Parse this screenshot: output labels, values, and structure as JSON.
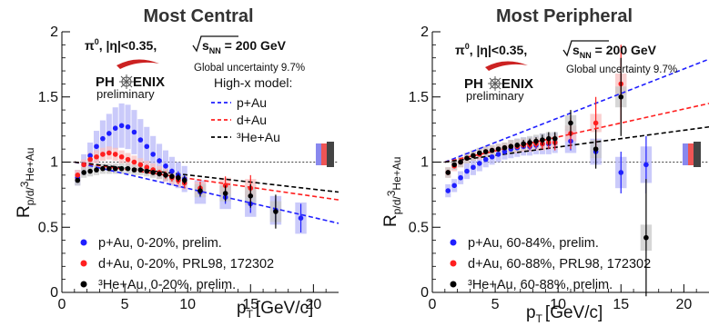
{
  "panels": [
    {
      "title": "Most Central",
      "condition": "π⁰, |η|<0.35, √s_NN = 200 GeV",
      "global_uncertainty": "Global uncertainty 9.7%",
      "logo_word": "PHENIX",
      "logo_sub": "preliminary",
      "model_title": "High-x model:",
      "model_entries": [
        "p+Au",
        "d+Au",
        "³He+Au"
      ],
      "legend": [
        "p+Au, 0-20%, prelim.",
        "d+Au, 0-20%, PRL98, 172302",
        "³He+Au, 0-20%, prelim."
      ]
    },
    {
      "title": "Most Peripheral",
      "condition": "π⁰, |η|<0.35, √s_NN = 200 GeV",
      "global_uncertainty": "Global uncertainty 9.7%",
      "logo_word": "PHENIX",
      "logo_sub": "preliminary",
      "model_title": "",
      "model_entries": [],
      "legend": [
        "p+Au, 60-84%, prelim.",
        "d+Au, 60-88%, PRL98, 172302",
        "³He+Au, 60-88%, prelim."
      ]
    }
  ],
  "colors": {
    "pAu": "#1f1fff",
    "dAu": "#ff1f1f",
    "HeAu": "#000000",
    "pBand": "#b8b8f8",
    "dBand": "#f8c0c0",
    "hBand": "#c8c8c8",
    "title": "#333333"
  },
  "chart_data": [
    {
      "type": "scatter",
      "title": "Most Central",
      "xlabel": "p_T [GeV/c]",
      "ylabel": "R_p/d/3He+Au",
      "xlim": [
        0,
        22
      ],
      "ylim": [
        0,
        2
      ],
      "xticks": [
        0,
        5,
        10,
        15,
        20
      ],
      "yticks": [
        0,
        0.5,
        1,
        1.5,
        2
      ],
      "reference_line": 1,
      "series": [
        {
          "name": "p+Au, 0-20%, prelim.",
          "key": "pAu",
          "x": [
            1.25,
            1.75,
            2.25,
            2.75,
            3.25,
            3.75,
            4.25,
            4.75,
            5.25,
            5.75,
            6.25,
            6.75,
            7.25,
            7.75,
            8.25,
            8.75,
            9.25,
            9.75,
            11,
            13,
            15,
            17,
            19
          ],
          "y": [
            0.88,
            0.98,
            1.05,
            1.12,
            1.18,
            1.22,
            1.26,
            1.28,
            1.27,
            1.23,
            1.17,
            1.12,
            1.06,
            1.01,
            0.97,
            0.93,
            0.9,
            0.87,
            0.77,
            0.73,
            0.68,
            0.63,
            0.57
          ],
          "band": [
            0.06,
            0.08,
            0.1,
            0.12,
            0.14,
            0.15,
            0.16,
            0.17,
            0.17,
            0.17,
            0.16,
            0.15,
            0.14,
            0.13,
            0.12,
            0.11,
            0.1,
            0.1,
            0.09,
            0.09,
            0.1,
            0.11,
            0.12
          ],
          "err": [
            0.01,
            0.01,
            0.01,
            0.01,
            0.01,
            0.01,
            0.01,
            0.01,
            0.01,
            0.01,
            0.01,
            0.015,
            0.015,
            0.02,
            0.02,
            0.02,
            0.03,
            0.03,
            0.04,
            0.05,
            0.07,
            0.09,
            0.11
          ]
        },
        {
          "name": "d+Au, 0-20%, PRL98, 172302",
          "key": "dAu",
          "x": [
            1.25,
            1.75,
            2.25,
            2.75,
            3.25,
            3.75,
            4.25,
            4.75,
            5.25,
            5.75,
            6.25,
            6.75,
            7.25,
            7.75,
            8.25,
            8.75,
            9.25,
            9.75,
            11,
            13,
            15
          ],
          "y": [
            0.9,
            0.98,
            1.02,
            1.04,
            1.06,
            1.07,
            1.06,
            1.04,
            1.02,
            1.0,
            0.98,
            0.96,
            0.94,
            0.92,
            0.9,
            0.88,
            0.86,
            0.84,
            0.8,
            0.82,
            0.8
          ],
          "band": [
            0.04,
            0.04,
            0.05,
            0.05,
            0.05,
            0.05,
            0.05,
            0.05,
            0.05,
            0.05,
            0.05,
            0.05,
            0.05,
            0.05,
            0.05,
            0.05,
            0.05,
            0.05,
            0.05,
            0.06,
            0.07
          ],
          "err": [
            0.01,
            0.01,
            0.01,
            0.01,
            0.01,
            0.01,
            0.01,
            0.01,
            0.01,
            0.01,
            0.01,
            0.02,
            0.02,
            0.02,
            0.03,
            0.03,
            0.03,
            0.04,
            0.05,
            0.07,
            0.1
          ]
        },
        {
          "name": "³He+Au, 0-20%, prelim.",
          "key": "HeAu",
          "x": [
            1.25,
            1.75,
            2.25,
            2.75,
            3.25,
            3.75,
            4.25,
            4.75,
            5.25,
            5.75,
            6.25,
            6.75,
            7.25,
            7.75,
            8.25,
            8.75,
            9.25,
            9.75,
            11,
            13,
            15,
            17
          ],
          "y": [
            0.86,
            0.92,
            0.93,
            0.94,
            0.95,
            0.95,
            0.95,
            0.95,
            0.95,
            0.94,
            0.94,
            0.93,
            0.92,
            0.91,
            0.9,
            0.89,
            0.88,
            0.86,
            0.78,
            0.76,
            0.74,
            0.62
          ],
          "band": [
            0.04,
            0.04,
            0.04,
            0.04,
            0.04,
            0.04,
            0.04,
            0.04,
            0.04,
            0.04,
            0.04,
            0.04,
            0.04,
            0.04,
            0.04,
            0.04,
            0.04,
            0.04,
            0.05,
            0.06,
            0.07,
            0.08
          ],
          "err": [
            0.01,
            0.01,
            0.01,
            0.01,
            0.01,
            0.01,
            0.01,
            0.01,
            0.01,
            0.01,
            0.01,
            0.015,
            0.015,
            0.02,
            0.02,
            0.02,
            0.03,
            0.03,
            0.04,
            0.06,
            0.09,
            0.13
          ]
        }
      ],
      "model_lines": [
        {
          "name": "p+Au",
          "key": "pAu",
          "x": [
            1,
            22
          ],
          "y": [
            1.0,
            0.53
          ]
        },
        {
          "name": "d+Au",
          "key": "dAu",
          "x": [
            1,
            22
          ],
          "y": [
            1.0,
            0.71
          ]
        },
        {
          "name": "³He+Au",
          "key": "HeAu",
          "x": [
            1,
            22
          ],
          "y": [
            1.0,
            0.77
          ]
        }
      ]
    },
    {
      "type": "scatter",
      "title": "Most Peripheral",
      "xlabel": "p_T [GeV/c]",
      "ylabel": "R_p/d/3He+Au",
      "xlim": [
        0,
        22
      ],
      "ylim": [
        0,
        2
      ],
      "xticks": [
        0,
        5,
        10,
        15,
        20
      ],
      "yticks": [
        0,
        0.5,
        1,
        1.5,
        2
      ],
      "reference_line": 1,
      "series": [
        {
          "name": "p+Au, 60-84%, prelim.",
          "key": "pAu",
          "x": [
            1.25,
            1.75,
            2.25,
            2.75,
            3.25,
            3.75,
            4.25,
            4.75,
            5.25,
            5.75,
            6.25,
            6.75,
            7.25,
            7.75,
            8.25,
            8.75,
            9.25,
            9.75,
            11,
            13,
            15,
            17
          ],
          "y": [
            0.78,
            0.82,
            0.88,
            0.93,
            0.96,
            0.99,
            1.02,
            1.04,
            1.06,
            1.08,
            1.1,
            1.11,
            1.12,
            1.12,
            1.13,
            1.14,
            1.14,
            1.15,
            1.16,
            1.08,
            0.92,
            0.98
          ],
          "band": [
            0.05,
            0.05,
            0.05,
            0.06,
            0.06,
            0.06,
            0.06,
            0.06,
            0.06,
            0.06,
            0.07,
            0.07,
            0.07,
            0.07,
            0.07,
            0.08,
            0.08,
            0.08,
            0.09,
            0.1,
            0.12,
            0.14
          ],
          "err": [
            0.01,
            0.01,
            0.01,
            0.01,
            0.01,
            0.01,
            0.01,
            0.01,
            0.015,
            0.015,
            0.02,
            0.02,
            0.02,
            0.03,
            0.03,
            0.03,
            0.04,
            0.05,
            0.07,
            0.1,
            0.16,
            0.22
          ]
        },
        {
          "name": "d+Au, 60-88%, PRL98, 172302",
          "key": "dAu",
          "x": [
            1.25,
            1.75,
            2.25,
            2.75,
            3.25,
            3.75,
            4.25,
            4.75,
            5.25,
            5.75,
            6.25,
            6.75,
            7.25,
            7.75,
            8.25,
            8.75,
            9.25,
            9.75,
            11,
            13,
            15
          ],
          "y": [
            0.92,
            0.97,
            1.0,
            1.03,
            1.05,
            1.06,
            1.08,
            1.09,
            1.1,
            1.11,
            1.12,
            1.12,
            1.13,
            1.13,
            1.14,
            1.14,
            1.15,
            1.15,
            1.22,
            1.3,
            1.6
          ],
          "band": [
            0.04,
            0.04,
            0.04,
            0.04,
            0.04,
            0.04,
            0.04,
            0.04,
            0.04,
            0.04,
            0.05,
            0.05,
            0.05,
            0.05,
            0.05,
            0.05,
            0.05,
            0.05,
            0.06,
            0.07,
            0.08
          ],
          "err": [
            0.01,
            0.01,
            0.01,
            0.01,
            0.01,
            0.01,
            0.01,
            0.01,
            0.01,
            0.015,
            0.02,
            0.02,
            0.02,
            0.03,
            0.03,
            0.04,
            0.05,
            0.06,
            0.12,
            0.2,
            0.3
          ]
        },
        {
          "name": "³He+Au, 60-88%, prelim.",
          "key": "HeAu",
          "x": [
            1.25,
            1.75,
            2.25,
            2.75,
            3.25,
            3.75,
            4.25,
            4.75,
            5.25,
            5.75,
            6.25,
            6.75,
            7.25,
            7.75,
            8.25,
            8.75,
            9.25,
            9.75,
            11,
            13,
            15,
            17
          ],
          "y": [
            0.92,
            0.98,
            1.0,
            1.03,
            1.05,
            1.07,
            1.08,
            1.09,
            1.1,
            1.11,
            1.12,
            1.13,
            1.14,
            1.15,
            1.16,
            1.17,
            1.18,
            1.18,
            1.3,
            1.1,
            1.5,
            0.42
          ],
          "band": [
            0.04,
            0.04,
            0.04,
            0.04,
            0.04,
            0.04,
            0.04,
            0.04,
            0.04,
            0.04,
            0.05,
            0.05,
            0.05,
            0.05,
            0.05,
            0.05,
            0.05,
            0.05,
            0.06,
            0.07,
            0.08,
            0.1
          ],
          "err": [
            0.01,
            0.01,
            0.01,
            0.01,
            0.01,
            0.01,
            0.01,
            0.01,
            0.015,
            0.015,
            0.02,
            0.02,
            0.03,
            0.03,
            0.03,
            0.04,
            0.05,
            0.05,
            0.1,
            0.15,
            0.3,
            0.45
          ]
        }
      ],
      "model_lines": [
        {
          "name": "p+Au",
          "key": "pAu",
          "x": [
            1,
            22
          ],
          "y": [
            1.0,
            1.79
          ]
        },
        {
          "name": "d+Au",
          "key": "dAu",
          "x": [
            1,
            22
          ],
          "y": [
            1.0,
            1.45
          ]
        },
        {
          "name": "³He+Au",
          "key": "HeAu",
          "x": [
            1,
            22
          ],
          "y": [
            1.0,
            1.27
          ]
        }
      ]
    }
  ]
}
